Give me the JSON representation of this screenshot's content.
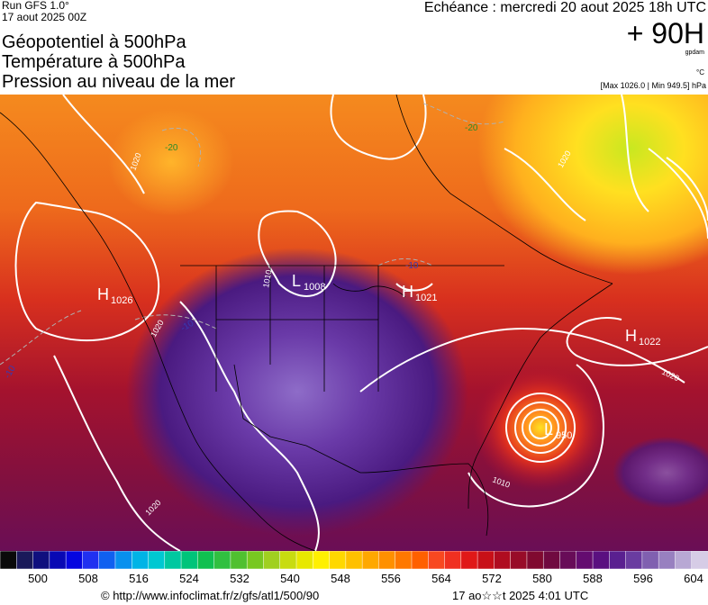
{
  "header": {
    "run": "Run GFS 1.0°",
    "run_date": "17 aout 2025 00Z",
    "echeance": "Echéance : mercredi 20 aout 2025 18h UTC",
    "lead": "+ 90H",
    "unit_gpdam": "gpdam",
    "unit_c": "°C",
    "maxmin": "[Max 1026.0 | Min 949.5] hPa",
    "titles": [
      "Géopotentiel à 500hPa",
      "Température à 500hPa",
      "Pression au niveau de la mer"
    ]
  },
  "map": {
    "colors": {
      "polar": "#ffd21f",
      "mid": "#f58a1e",
      "warm": "#e0361e",
      "hot": "#a4122e",
      "tropical": "#5a1470",
      "core": "#7e54b8",
      "ocean_line": "#ffffff"
    },
    "pressure_centers": [
      {
        "kind": "H",
        "value": "1026"
      },
      {
        "kind": "L",
        "value": "1008"
      },
      {
        "kind": "H",
        "value": "1021"
      },
      {
        "kind": "H",
        "value": "1022"
      },
      {
        "kind": "L",
        "value": "950"
      }
    ],
    "isobar_labels": [
      "1020",
      "1010",
      "1020",
      "1020",
      "1020",
      "1010",
      "1020"
    ],
    "temp_labels": [
      "-20",
      "-20",
      "-10",
      "-10",
      "-10"
    ]
  },
  "colorbar": {
    "ticks": [
      "500",
      "508",
      "516",
      "524",
      "532",
      "540",
      "548",
      "556",
      "564",
      "572",
      "580",
      "588",
      "596",
      "604"
    ],
    "colors": [
      "#0a0a0a",
      "#1a1a5a",
      "#10107e",
      "#0808b4",
      "#0505e0",
      "#2030f0",
      "#1060f0",
      "#0890ee",
      "#00b4e6",
      "#00c8d2",
      "#00c8a0",
      "#00c47a",
      "#10c050",
      "#30c040",
      "#50c030",
      "#78c820",
      "#a0d020",
      "#c8dc10",
      "#e8e800",
      "#fff000",
      "#ffd800",
      "#ffc000",
      "#ffa800",
      "#ff9000",
      "#ff7800",
      "#ff6000",
      "#f84820",
      "#f03020",
      "#e01818",
      "#c81018",
      "#b00c20",
      "#980c28",
      "#800a30",
      "#700a40",
      "#680c58",
      "#640c70",
      "#5a1080",
      "#5a2090",
      "#6a3ca0",
      "#8060b0",
      "#9880c0",
      "#b8a8d4",
      "#d6cce6"
    ]
  },
  "credit": {
    "url": "© http://www.infoclimat.fr/z/gfs/atl1/500/90",
    "date": "17 ao☆☆t 2025  4:01 UTC"
  }
}
